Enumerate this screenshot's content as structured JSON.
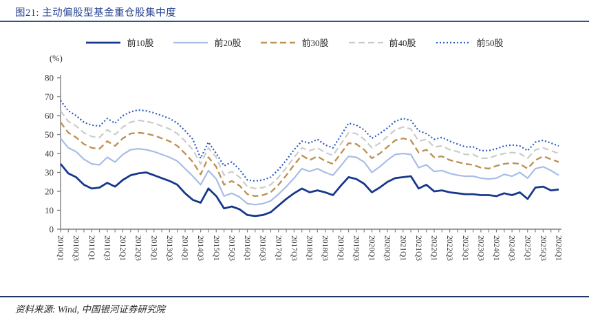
{
  "header": {
    "title": "图21:  主动偏股型基金重仓股集中度"
  },
  "footer": {
    "source": "资料来源:  Wind,  中国银河证券研究院"
  },
  "chart_data": {
    "type": "line",
    "title": "主动偏股型基金重仓股集中度",
    "unit_label": "(%)",
    "xlabel": "",
    "ylabel": "(%)",
    "ylim": [
      0,
      80
    ],
    "yticks": [
      0,
      10,
      20,
      30,
      40,
      50,
      60,
      70,
      80
    ],
    "grid": false,
    "legend_position": "top",
    "x_label_every": 2,
    "categories": [
      "2010Q1",
      "2010Q2",
      "2010Q3",
      "2010Q4",
      "2011Q1",
      "2011Q2",
      "2011Q3",
      "2011Q4",
      "2012Q1",
      "2012Q2",
      "2012Q3",
      "2012Q4",
      "2013Q1",
      "2013Q2",
      "2013Q3",
      "2013Q4",
      "2014Q1",
      "2014Q2",
      "2014Q3",
      "2014Q4",
      "2015Q1",
      "2015Q2",
      "2015Q3",
      "2015Q4",
      "2016Q1",
      "2016Q2",
      "2016Q3",
      "2016Q4",
      "2017Q1",
      "2017Q2",
      "2017Q3",
      "2017Q4",
      "2018Q1",
      "2018Q2",
      "2018Q3",
      "2018Q4",
      "2019Q1",
      "2019Q2",
      "2019Q3",
      "2019Q4",
      "2020Q1",
      "2020Q2",
      "2020Q3",
      "2020Q4",
      "2021Q1",
      "2021Q2",
      "2021Q3",
      "2021Q4",
      "2022Q1",
      "2022Q2",
      "2022Q3",
      "2022Q4",
      "2023Q1",
      "2023Q2",
      "2023Q3",
      "2023Q4",
      "2024Q1",
      "2024Q2",
      "2024Q3",
      "2024Q4",
      "2025Q1",
      "2025Q2",
      "2025Q3",
      "2025Q4",
      "2026Q1"
    ],
    "series": [
      {
        "key": "top10",
        "name": "前10股",
        "color": "#16388C",
        "style": "solid",
        "width": 2.8,
        "values": [
          34.5,
          29.5,
          27.5,
          23.5,
          21.5,
          22,
          24.5,
          22.5,
          26,
          28.5,
          29.5,
          30,
          28.5,
          27,
          25.5,
          23.5,
          19,
          15.5,
          14,
          21.5,
          17.5,
          11,
          12,
          10.5,
          7.5,
          7,
          7.5,
          9,
          12.5,
          16,
          19,
          21.5,
          19.5,
          20.5,
          19.5,
          18,
          23,
          27.5,
          26.5,
          24,
          19.5,
          22,
          25,
          27,
          27.5,
          28,
          21.5,
          23.5,
          20,
          20.5,
          19.5,
          19,
          18.5,
          18.5,
          18,
          18,
          17.5,
          19,
          18,
          19.5,
          16,
          22,
          22.5,
          20.5,
          21
        ]
      },
      {
        "key": "top20",
        "name": "前20股",
        "color": "#A8BDE6",
        "style": "solid",
        "width": 2.2,
        "values": [
          48,
          43,
          41,
          37,
          34.5,
          34,
          38,
          35.5,
          39.5,
          42,
          42.5,
          42,
          41,
          39.5,
          38,
          36,
          32,
          28,
          23.5,
          31,
          26.5,
          17.5,
          19,
          17,
          13.5,
          13,
          13.5,
          15,
          18.5,
          22.5,
          27,
          32,
          30.5,
          32,
          30,
          28.5,
          33.5,
          38.5,
          38,
          35.5,
          30,
          33,
          36.5,
          39.5,
          40,
          39.5,
          32.5,
          34,
          30.5,
          31,
          29.5,
          28.5,
          28,
          28,
          27,
          26.5,
          27,
          29,
          28,
          30,
          27,
          32,
          33,
          31,
          28.5
        ]
      },
      {
        "key": "top30",
        "name": "前30股",
        "color": "#BE9155",
        "style": "dashed",
        "width": 2.4,
        "values": [
          56.5,
          51,
          48.5,
          45,
          43,
          42.5,
          46.5,
          44,
          48,
          50.5,
          51,
          50.5,
          49.5,
          48,
          46.5,
          44,
          40,
          35.5,
          29,
          38,
          33,
          23.5,
          25.5,
          23,
          18.5,
          17.5,
          18,
          19.5,
          23.5,
          28.5,
          34,
          39,
          36.5,
          38.5,
          36,
          34.5,
          40,
          45.5,
          45,
          42,
          37.5,
          40,
          43.5,
          47,
          48,
          47,
          40.5,
          42,
          38,
          38.5,
          36.5,
          35.5,
          34.5,
          34,
          32.5,
          32,
          33.5,
          34.5,
          35,
          34.5,
          32,
          36.5,
          38.5,
          37,
          35.5
        ]
      },
      {
        "key": "top40",
        "name": "前40股",
        "color": "#CBCBCB",
        "style": "dashed",
        "width": 2.2,
        "values": [
          62.5,
          57,
          54.5,
          51,
          49,
          48.5,
          52.5,
          50,
          54,
          56.5,
          57.5,
          57,
          56,
          54.5,
          53,
          50.5,
          46.5,
          42,
          34.5,
          43,
          38,
          28.5,
          30.5,
          27.5,
          22.5,
          21.5,
          22,
          23.5,
          27.5,
          32.5,
          38,
          43,
          41.5,
          43,
          40.5,
          39,
          45,
          51,
          50.5,
          47.5,
          43,
          45.5,
          49,
          52.5,
          54,
          53,
          46.5,
          47.5,
          43.5,
          44,
          42,
          41,
          39.5,
          39.5,
          37.5,
          37.5,
          39,
          40,
          40.5,
          40,
          37.5,
          42,
          43,
          41.5,
          40
        ]
      },
      {
        "key": "top50",
        "name": "前50股",
        "color": "#2C5AC0",
        "style": "dotted",
        "width": 2.2,
        "values": [
          68,
          62.5,
          60,
          56.5,
          55,
          54.5,
          58.5,
          56,
          60,
          62,
          63,
          62.5,
          61.5,
          60,
          58.5,
          56,
          52,
          47.5,
          37.5,
          46,
          40,
          33.5,
          35.5,
          31.5,
          26,
          25.5,
          26,
          27.5,
          31.5,
          36.5,
          42,
          46.5,
          45.5,
          47.5,
          44.5,
          43,
          49.5,
          56,
          55,
          52.5,
          48,
          50.5,
          53.5,
          57,
          58.5,
          57.5,
          52,
          50.5,
          47.5,
          48.5,
          46.5,
          45,
          43.5,
          43.5,
          41.5,
          41.5,
          42.5,
          44,
          44.5,
          44,
          41.5,
          46,
          47,
          45.5,
          44
        ]
      }
    ]
  }
}
